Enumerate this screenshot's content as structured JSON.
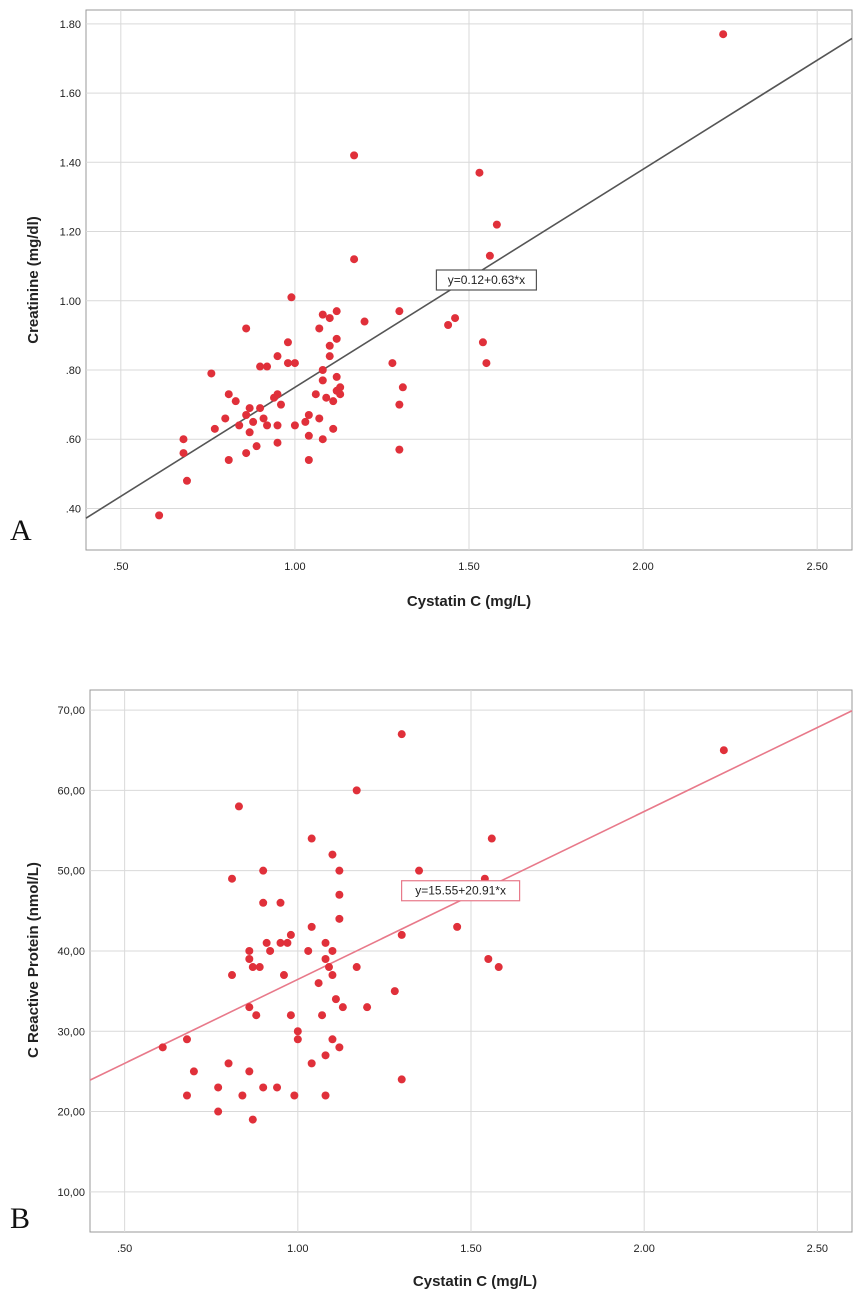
{
  "chart_data": [
    {
      "panel": "A",
      "type": "scatter",
      "title": "",
      "xlabel": "Cystatin C (mg/L)",
      "ylabel": "Creatinine (mg/dl)",
      "xlim": [
        0.4,
        2.6
      ],
      "ylim": [
        0.28,
        1.84
      ],
      "x_ticks": [
        0.5,
        1.0,
        1.5,
        2.0,
        2.5
      ],
      "x_tick_labels": [
        ".50",
        "1.00",
        "1.50",
        "2.00",
        "2.50"
      ],
      "y_ticks": [
        0.4,
        0.6,
        0.8,
        1.0,
        1.2,
        1.4,
        1.6,
        1.8
      ],
      "y_tick_labels": [
        ".40",
        ".60",
        ".80",
        "1.00",
        "1.20",
        "1.40",
        "1.60",
        "1.80"
      ],
      "grid": true,
      "point_color": "#e0303a",
      "line_color": "#555555",
      "fit": {
        "intercept": 0.12,
        "slope": 0.63,
        "label": "y=0.12+0.63*x",
        "label_at": [
          1.55,
          1.06
        ]
      },
      "points": [
        [
          0.61,
          0.38
        ],
        [
          0.68,
          0.6
        ],
        [
          0.68,
          0.56
        ],
        [
          0.69,
          0.48
        ],
        [
          0.76,
          0.79
        ],
        [
          0.77,
          0.63
        ],
        [
          0.8,
          0.66
        ],
        [
          0.81,
          0.73
        ],
        [
          0.81,
          0.54
        ],
        [
          0.83,
          0.71
        ],
        [
          0.84,
          0.64
        ],
        [
          0.86,
          0.92
        ],
        [
          0.86,
          0.67
        ],
        [
          0.86,
          0.56
        ],
        [
          0.87,
          0.69
        ],
        [
          0.87,
          0.62
        ],
        [
          0.88,
          0.65
        ],
        [
          0.89,
          0.58
        ],
        [
          0.9,
          0.81
        ],
        [
          0.9,
          0.69
        ],
        [
          0.91,
          0.66
        ],
        [
          0.92,
          0.81
        ],
        [
          0.92,
          0.64
        ],
        [
          0.94,
          0.72
        ],
        [
          0.95,
          0.84
        ],
        [
          0.95,
          0.73
        ],
        [
          0.95,
          0.64
        ],
        [
          0.95,
          0.59
        ],
        [
          0.96,
          0.7
        ],
        [
          0.98,
          0.88
        ],
        [
          0.98,
          0.82
        ],
        [
          0.99,
          1.01
        ],
        [
          1.0,
          0.82
        ],
        [
          1.0,
          0.64
        ],
        [
          1.03,
          0.65
        ],
        [
          1.04,
          0.67
        ],
        [
          1.04,
          0.61
        ],
        [
          1.04,
          0.54
        ],
        [
          1.06,
          0.73
        ],
        [
          1.07,
          0.92
        ],
        [
          1.07,
          0.66
        ],
        [
          1.08,
          0.96
        ],
        [
          1.08,
          0.8
        ],
        [
          1.08,
          0.77
        ],
        [
          1.08,
          0.6
        ],
        [
          1.09,
          0.72
        ],
        [
          1.1,
          0.95
        ],
        [
          1.1,
          0.87
        ],
        [
          1.1,
          0.84
        ],
        [
          1.11,
          0.71
        ],
        [
          1.11,
          0.63
        ],
        [
          1.12,
          0.97
        ],
        [
          1.12,
          0.89
        ],
        [
          1.12,
          0.78
        ],
        [
          1.12,
          0.74
        ],
        [
          1.13,
          0.75
        ],
        [
          1.13,
          0.73
        ],
        [
          1.17,
          1.42
        ],
        [
          1.17,
          1.12
        ],
        [
          1.2,
          0.94
        ],
        [
          1.28,
          0.82
        ],
        [
          1.3,
          0.97
        ],
        [
          1.3,
          0.7
        ],
        [
          1.3,
          0.57
        ],
        [
          1.31,
          0.75
        ],
        [
          1.44,
          0.93
        ],
        [
          1.46,
          0.95
        ],
        [
          1.53,
          1.37
        ],
        [
          1.54,
          0.88
        ],
        [
          1.55,
          0.82
        ],
        [
          1.56,
          1.13
        ],
        [
          1.58,
          1.22
        ],
        [
          2.23,
          1.77
        ]
      ]
    },
    {
      "panel": "B",
      "type": "scatter",
      "title": "",
      "xlabel": "Cystatin C (mg/L)",
      "ylabel": "C Reactive Protein (nmol/L)",
      "xlim": [
        0.4,
        2.6
      ],
      "ylim": [
        5.0,
        72.5
      ],
      "x_ticks": [
        0.5,
        1.0,
        1.5,
        2.0,
        2.5
      ],
      "x_tick_labels": [
        ".50",
        "1.00",
        "1.50",
        "2.00",
        "2.50"
      ],
      "y_ticks": [
        10,
        20,
        30,
        40,
        50,
        60,
        70
      ],
      "y_tick_labels": [
        "10,00",
        "20,00",
        "30,00",
        "40,00",
        "50,00",
        "60,00",
        "70,00"
      ],
      "grid": true,
      "point_color": "#e0303a",
      "line_color": "#e8798a",
      "fit": {
        "intercept": 15.55,
        "slope": 20.91,
        "label": "y=15.55+20.91*x",
        "label_at": [
          1.47,
          47.5
        ]
      },
      "points": [
        [
          0.61,
          28
        ],
        [
          0.68,
          29
        ],
        [
          0.68,
          22
        ],
        [
          0.7,
          25
        ],
        [
          0.77,
          20
        ],
        [
          0.77,
          23
        ],
        [
          0.8,
          26
        ],
        [
          0.81,
          37
        ],
        [
          0.81,
          49
        ],
        [
          0.83,
          58
        ],
        [
          0.84,
          22
        ],
        [
          0.86,
          40
        ],
        [
          0.86,
          39
        ],
        [
          0.86,
          33
        ],
        [
          0.86,
          25
        ],
        [
          0.87,
          19
        ],
        [
          0.87,
          38
        ],
        [
          0.88,
          32
        ],
        [
          0.89,
          38
        ],
        [
          0.9,
          23
        ],
        [
          0.9,
          50
        ],
        [
          0.9,
          46
        ],
        [
          0.91,
          41
        ],
        [
          0.92,
          40
        ],
        [
          0.94,
          23
        ],
        [
          0.95,
          46
        ],
        [
          0.95,
          41
        ],
        [
          0.96,
          37
        ],
        [
          0.97,
          41
        ],
        [
          0.98,
          42
        ],
        [
          0.98,
          32
        ],
        [
          0.99,
          22
        ],
        [
          1.0,
          30
        ],
        [
          1.0,
          29
        ],
        [
          1.03,
          40
        ],
        [
          1.04,
          54
        ],
        [
          1.04,
          43
        ],
        [
          1.04,
          26
        ],
        [
          1.06,
          36
        ],
        [
          1.07,
          32
        ],
        [
          1.08,
          39
        ],
        [
          1.08,
          41
        ],
        [
          1.08,
          27
        ],
        [
          1.08,
          22
        ],
        [
          1.09,
          38
        ],
        [
          1.1,
          52
        ],
        [
          1.1,
          40
        ],
        [
          1.1,
          37
        ],
        [
          1.1,
          29
        ],
        [
          1.11,
          34
        ],
        [
          1.12,
          50
        ],
        [
          1.12,
          47
        ],
        [
          1.12,
          44
        ],
        [
          1.12,
          28
        ],
        [
          1.13,
          33
        ],
        [
          1.17,
          60
        ],
        [
          1.17,
          38
        ],
        [
          1.2,
          33
        ],
        [
          1.28,
          35
        ],
        [
          1.3,
          67
        ],
        [
          1.3,
          42
        ],
        [
          1.3,
          24
        ],
        [
          1.31,
          48
        ],
        [
          1.35,
          50
        ],
        [
          1.46,
          43
        ],
        [
          1.54,
          49
        ],
        [
          1.55,
          39
        ],
        [
          1.56,
          54
        ],
        [
          1.58,
          38
        ],
        [
          2.23,
          65
        ]
      ]
    }
  ]
}
